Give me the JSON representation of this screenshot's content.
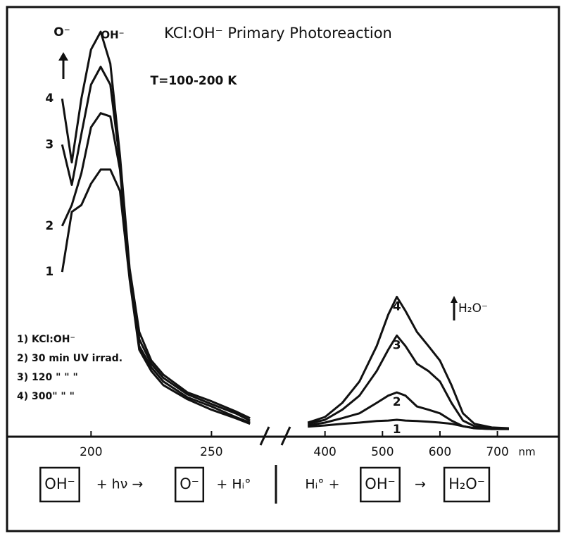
{
  "chart_data": [
    {
      "type": "line",
      "title": "KCl:OH⁻ Primary Photoreaction",
      "subtitle": "T=100-200 K",
      "annotations": [
        "O⁻",
        "OH⁻"
      ],
      "x": [
        188,
        192,
        196,
        200,
        204,
        208,
        212,
        216,
        220,
        225,
        230,
        240,
        250,
        260,
        266
      ],
      "xlim": [
        185,
        268
      ],
      "xticks": [
        200,
        250
      ],
      "ylim": [
        0,
        100
      ],
      "series": [
        {
          "name": "1) KCl:OH⁻",
          "label": "1",
          "color": "#111111",
          "values": [
            39.5,
            54.4,
            56.1,
            61.4,
            64.9,
            64.9,
            59.6,
            37.7,
            20.2,
            14.9,
            11.4,
            7.9,
            5.3,
            3.2,
            1.8
          ]
        },
        {
          "name": "2) 30 min UV irrad.",
          "label": "2",
          "color": "#111111",
          "values": [
            50.9,
            56.1,
            64.0,
            75.4,
            78.9,
            78.1,
            64.9,
            38.6,
            21.1,
            15.8,
            12.3,
            8.4,
            6.1,
            3.5,
            2.1
          ]
        },
        {
          "name": "3) 120 \"  \"  \"",
          "label": "3",
          "color": "#111111",
          "values": [
            71.1,
            61.1,
            73.7,
            86.0,
            90.4,
            86.0,
            66.7,
            39.5,
            22.8,
            16.7,
            13.2,
            9.1,
            6.7,
            4.4,
            2.6
          ]
        },
        {
          "name": "4) 300\"  \"  \"",
          "label": "4",
          "color": "#111111",
          "values": [
            82.5,
            66.7,
            82.5,
            94.7,
            99.1,
            91.2,
            68.4,
            40.4,
            24.6,
            17.5,
            14.0,
            9.6,
            7.4,
            4.9,
            3.2
          ]
        }
      ]
    },
    {
      "type": "line",
      "x_label": "nm",
      "annotations": [
        "H₂O⁻"
      ],
      "x": [
        370,
        400,
        430,
        460,
        490,
        510,
        525,
        540,
        560,
        580,
        600,
        620,
        640,
        660,
        690,
        720
      ],
      "xlim": [
        360,
        725
      ],
      "xticks": [
        400,
        500,
        600,
        700
      ],
      "ylim": [
        0,
        100
      ],
      "series": [
        {
          "label": "1",
          "color": "#111111",
          "values": [
            1.1,
            1.4,
            1.8,
            2.1,
            2.5,
            2.6,
            2.8,
            2.6,
            2.5,
            2.3,
            2.1,
            1.8,
            1.2,
            0.7,
            0.5,
            0.5
          ]
        },
        {
          "label": "2",
          "color": "#111111",
          "values": [
            1.4,
            2.1,
            3.2,
            4.4,
            7.0,
            8.8,
            9.6,
            8.8,
            6.1,
            5.3,
            4.4,
            2.6,
            1.2,
            0.7,
            0.5,
            0.5
          ]
        },
        {
          "label": "3",
          "color": "#111111",
          "values": [
            1.8,
            2.8,
            5.3,
            8.8,
            14.9,
            20.2,
            23.7,
            21.1,
            16.7,
            14.9,
            12.3,
            7.0,
            2.6,
            1.2,
            0.7,
            0.5
          ]
        },
        {
          "label": "4",
          "color": "#111111",
          "values": [
            2.1,
            3.5,
            7.0,
            12.3,
            21.1,
            28.9,
            33.3,
            29.8,
            24.6,
            21.1,
            17.5,
            11.4,
            4.4,
            1.8,
            0.9,
            0.7
          ]
        }
      ]
    }
  ],
  "reaction": {
    "left": [
      {
        "text": "OH⁻",
        "boxed": true
      },
      {
        "text": "+ hν →",
        "boxed": false
      },
      {
        "text": "O⁻",
        "boxed": true
      },
      {
        "text": "+ Hᵢ°",
        "boxed": false
      }
    ],
    "right": [
      {
        "text": "Hᵢ° +",
        "boxed": false
      },
      {
        "text": "OH⁻",
        "boxed": true
      },
      {
        "text": "→",
        "boxed": false
      },
      {
        "text": "H₂O⁻",
        "boxed": true
      }
    ]
  }
}
